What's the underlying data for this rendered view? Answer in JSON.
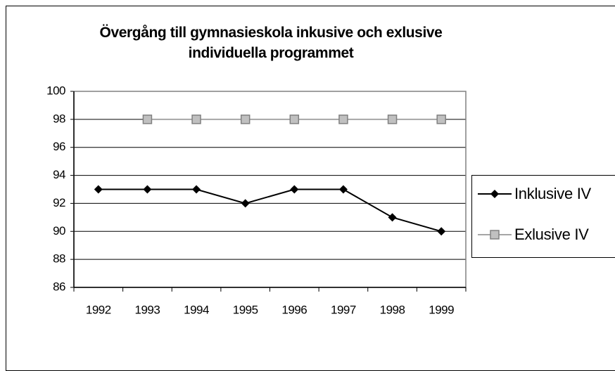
{
  "chart_data": {
    "type": "line",
    "title": "Övergång till gymnasieskola inkusive och exlusive individuella programmet",
    "categories": [
      "1992",
      "1993",
      "1994",
      "1995",
      "1996",
      "1997",
      "1998",
      "1999"
    ],
    "series": [
      {
        "name": "Inklusive IV",
        "color": "#000000",
        "values": [
          93,
          93,
          93,
          92,
          93,
          93,
          91,
          90
        ]
      },
      {
        "name": "Exlusive IV",
        "color": "#a6a6a6",
        "values": [
          null,
          98,
          98,
          98,
          98,
          98,
          98,
          98
        ]
      }
    ],
    "ylim": [
      86,
      100
    ],
    "yticks": [
      86,
      88,
      90,
      92,
      94,
      96,
      98,
      100
    ],
    "grid": true,
    "legend": "right"
  }
}
